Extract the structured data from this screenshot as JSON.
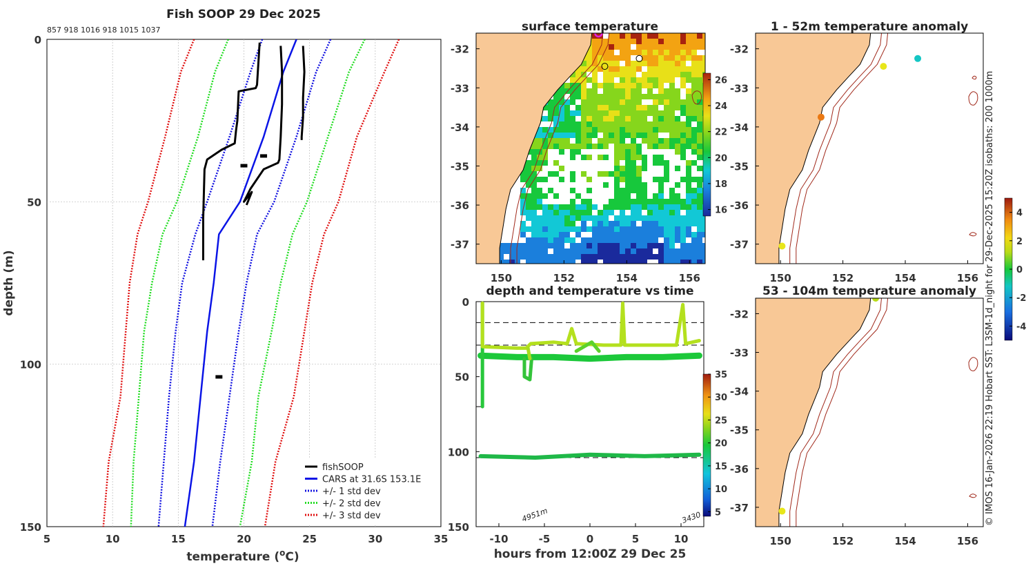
{
  "page_title": "Fish SOOP 29 Dec 2025",
  "side_text": "© IMOS 16-Jan-2026 22:19 Hobart SST: L3SM-1d_night for 29-Dec-2025 15:20Z isobaths: 200  1000m",
  "colors": {
    "fishsoop": "#000000",
    "cars": "#0a14e6",
    "std1": "#1010e0",
    "std2": "#22dd22",
    "std3": "#e01010",
    "land": "#f8c896",
    "isobath": "#a0281a"
  },
  "chart_data": [
    {
      "id": "profile",
      "type": "line",
      "title": "Fish SOOP 29 Dec 2025",
      "counts_label": "857 918 1016 918 1015 1037",
      "xlabel": "temperature (°C)",
      "ylabel": "depth (m)",
      "xlim": [
        5,
        35
      ],
      "ylim": [
        150,
        0
      ],
      "xticks": [
        "5",
        "10",
        "15",
        "20",
        "25",
        "30",
        "35"
      ],
      "yticks": [
        "0",
        "50",
        "100",
        "150"
      ],
      "grid": true,
      "legend_position": "bottom-right",
      "legend": [
        "fishSOOP",
        "CARS at 31.6S 153.1E",
        "+/- 1 std dev",
        "+/- 2 std dev",
        "+/- 3 std dev"
      ],
      "series": [
        {
          "name": "CARS mean",
          "x": [
            24,
            23,
            21.5,
            19.7,
            18.1,
            17.7,
            17.2,
            16.7,
            16.2,
            15.5
          ],
          "y": [
            0,
            10,
            30,
            50,
            60,
            75,
            90,
            110,
            130,
            150
          ]
        },
        {
          "name": "+1 std",
          "x": [
            26.6,
            25.5,
            24,
            22.3,
            21,
            20.2,
            19.6,
            18.9,
            18.2,
            17.6
          ],
          "y": [
            0,
            10,
            30,
            50,
            60,
            75,
            90,
            110,
            130,
            150
          ]
        },
        {
          "name": "-1 std",
          "x": [
            21.4,
            20.5,
            18.9,
            17.2,
            16.3,
            15.3,
            14.8,
            14.3,
            13.9,
            13.5
          ],
          "y": [
            0,
            10,
            30,
            50,
            60,
            75,
            90,
            110,
            130,
            150
          ]
        },
        {
          "name": "+2 std",
          "x": [
            29.2,
            28,
            26.4,
            24.8,
            23.7,
            22.8,
            22.1,
            21.1,
            20.6,
            19.7
          ],
          "y": [
            0,
            10,
            30,
            50,
            60,
            75,
            90,
            110,
            130,
            150
          ]
        },
        {
          "name": "-2 std",
          "x": [
            18.8,
            17.8,
            16.5,
            14.9,
            13.8,
            13,
            12.4,
            12,
            11.6,
            11.4
          ],
          "y": [
            0,
            10,
            30,
            50,
            60,
            75,
            90,
            110,
            130,
            150
          ]
        },
        {
          "name": "+3 std",
          "x": [
            31.8,
            30.7,
            28.6,
            27.2,
            26.1,
            25.2,
            24.6,
            23.8,
            22.4,
            21.6
          ],
          "y": [
            0,
            10,
            30,
            50,
            60,
            75,
            90,
            110,
            130,
            150
          ]
        },
        {
          "name": "-3 std",
          "x": [
            16.2,
            15.2,
            14,
            12.7,
            11.9,
            11.3,
            11,
            10.6,
            9.7,
            9.3
          ],
          "y": [
            0,
            10,
            30,
            50,
            60,
            75,
            90,
            110,
            130,
            150
          ]
        },
        {
          "name": "fishSOOP 1",
          "x": [
            21.2,
            21,
            20.9,
            19.6,
            19.5,
            19.4,
            19.3,
            18.3,
            17.2,
            17,
            16.9,
            16.9
          ],
          "y": [
            1,
            14,
            15,
            16,
            25,
            28,
            32,
            34,
            37,
            40,
            55,
            68
          ]
        },
        {
          "name": "fishSOOP 2",
          "x": [
            22.8,
            22.9,
            22.9,
            22.8,
            22.7,
            22.6,
            21.5,
            20.5,
            20,
            20.6,
            20.2
          ],
          "y": [
            2,
            10,
            20,
            30,
            37,
            38,
            40,
            46,
            50,
            47,
            51
          ]
        },
        {
          "name": "fishSOOP 3",
          "x": [
            24.5,
            24.6,
            24.5,
            24.5,
            24.4,
            24.4
          ],
          "y": [
            2,
            10,
            18,
            24,
            30,
            31
          ]
        },
        {
          "name": "fishSOOP points",
          "x": [
            21.5,
            20,
            18.1
          ],
          "y": [
            36,
            39,
            104
          ]
        }
      ]
    },
    {
      "id": "sst_map",
      "type": "heatmap",
      "title": "surface temperature",
      "xticks": [
        "150",
        "152",
        "154",
        "156"
      ],
      "yticks": [
        "-32",
        "-33",
        "-34",
        "-35",
        "-36",
        "-37"
      ],
      "xlim": [
        149.2,
        156.5
      ],
      "ylim": [
        -37.5,
        -31.6
      ],
      "colorbar_ticks": [
        "16",
        "18",
        "20",
        "22",
        "24",
        "26"
      ],
      "colorbar_range": [
        15.5,
        26.5
      ],
      "markers": [
        {
          "lon": 153.1,
          "lat": -31.6,
          "style": "magenta ring"
        },
        {
          "lon": 153.3,
          "lat": -32.45,
          "style": "black ring"
        },
        {
          "lon": 154.4,
          "lat": -32.25,
          "style": "black ring"
        }
      ]
    },
    {
      "id": "depth_time",
      "type": "scatter",
      "title": "depth and temperature vs time",
      "xlabel": "hours from 12:00Z 29 Dec 25",
      "xlim": [
        -12.5,
        12.5
      ],
      "ylim": [
        150,
        0
      ],
      "xticks": [
        "-10",
        "-5",
        "0",
        "5",
        "10"
      ],
      "yticks": [
        "0",
        "50",
        "100",
        "150"
      ],
      "colorbar_ticks": [
        "5",
        "10",
        "15",
        "20",
        "25",
        "30",
        "35"
      ],
      "colorbar_range": [
        4,
        35
      ],
      "annotations": [
        "4951m",
        "3430"
      ],
      "reference_depths": [
        14,
        29,
        104
      ]
    },
    {
      "id": "anom_shallow",
      "type": "scatter",
      "title": "1 - 52m temperature anomaly",
      "xticks": [
        "150",
        "152",
        "154",
        "156"
      ],
      "yticks": [
        "-32",
        "-33",
        "-34",
        "-35",
        "-36",
        "-37"
      ],
      "points": [
        {
          "lon": 153.3,
          "lat": -32.45,
          "anomaly": 2
        },
        {
          "lon": 154.4,
          "lat": -32.25,
          "anomaly": -0.9
        },
        {
          "lon": 151.3,
          "lat": -33.75,
          "anomaly": 3.2
        },
        {
          "lon": 150.05,
          "lat": -37.05,
          "anomaly": 2.3
        }
      ]
    },
    {
      "id": "anom_deep",
      "type": "scatter",
      "title": "53 - 104m temperature anomaly",
      "xticks": [
        "150",
        "152",
        "154",
        "156"
      ],
      "yticks": [
        "-32",
        "-33",
        "-34",
        "-35",
        "-36",
        "-37"
      ],
      "colorbar_ticks": [
        "4",
        "2",
        "0",
        "-2",
        "-4"
      ],
      "colorbar_range": [
        -5,
        5
      ],
      "points": [
        {
          "lon": 153.05,
          "lat": -31.6,
          "anomaly": 1.7
        },
        {
          "lon": 150.05,
          "lat": -37.1,
          "anomaly": 1.8
        }
      ]
    }
  ]
}
